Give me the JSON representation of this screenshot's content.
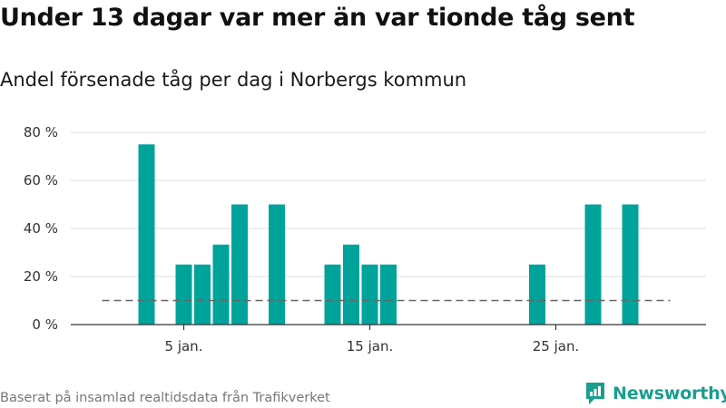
{
  "colors": {
    "bar": "#00a39a",
    "grid": "#dddddd",
    "axis": "#333333",
    "threshold": "#666666",
    "brand": "#1a9e8f"
  },
  "source": "Baserat på insamlad realtidsdata från Trafikverket",
  "brand": {
    "name": "Newsworthy",
    "icon": "newsworthy-logo-icon"
  },
  "chart_data": {
    "type": "bar",
    "title": "Under 13 dagar var mer än var tionde tåg sent",
    "subtitle": "Andel försenade tåg per dag i Norbergs kommun",
    "xlabel": "",
    "ylabel": "",
    "x": [
      "1 jan.",
      "2 jan.",
      "3 jan.",
      "4 jan.",
      "5 jan.",
      "6 jan.",
      "7 jan.",
      "8 jan.",
      "9 jan.",
      "10 jan.",
      "11 jan.",
      "12 jan.",
      "13 jan.",
      "14 jan.",
      "15 jan.",
      "16 jan.",
      "17 jan.",
      "18 jan.",
      "19 jan.",
      "20 jan.",
      "21 jan.",
      "22 jan.",
      "23 jan.",
      "24 jan.",
      "25 jan.",
      "26 jan.",
      "27 jan.",
      "28 jan.",
      "29 jan.",
      "30 jan.",
      "31 jan."
    ],
    "values": [
      null,
      null,
      75,
      null,
      25,
      25,
      33.3,
      50,
      null,
      50,
      null,
      null,
      25,
      33.3,
      25,
      25,
      null,
      null,
      null,
      null,
      null,
      null,
      null,
      25,
      null,
      null,
      50,
      null,
      50,
      null,
      null
    ],
    "xticks": [
      "5 jan.",
      "15 jan.",
      "25 jan."
    ],
    "yticks": [
      "0 %",
      "20 %",
      "40 %",
      "60 %",
      "80 %"
    ],
    "ytick_values": [
      0,
      20,
      40,
      60,
      80
    ],
    "ylim": [
      0,
      80
    ],
    "threshold": 10,
    "grid": true,
    "legend": "none"
  }
}
